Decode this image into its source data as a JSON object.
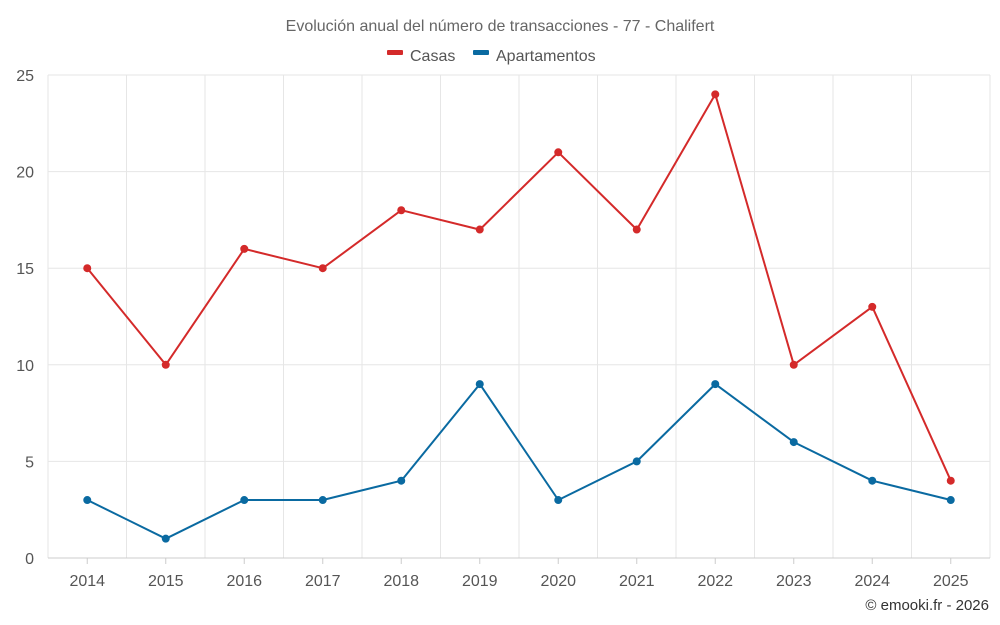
{
  "chart_data": {
    "type": "line",
    "title": "Evolución anual del número de transacciones - 77 - Chalifert",
    "categories": [
      "2014",
      "2015",
      "2016",
      "2017",
      "2018",
      "2019",
      "2020",
      "2021",
      "2022",
      "2023",
      "2024",
      "2025"
    ],
    "series": [
      {
        "name": "Casas",
        "color": "#d42a2a",
        "values": [
          15,
          10,
          16,
          15,
          18,
          17,
          21,
          17,
          24,
          10,
          13,
          4
        ]
      },
      {
        "name": "Apartamentos",
        "color": "#0a6aa1",
        "values": [
          3,
          1,
          3,
          3,
          4,
          9,
          3,
          5,
          9,
          6,
          4,
          3
        ]
      }
    ],
    "ylim": [
      0,
      25
    ],
    "yticks": [
      0,
      5,
      10,
      15,
      20,
      25
    ],
    "xlabel": "",
    "ylabel": "",
    "grid": true,
    "legend": "top-center"
  },
  "credit": "© emooki.fr - 2026"
}
